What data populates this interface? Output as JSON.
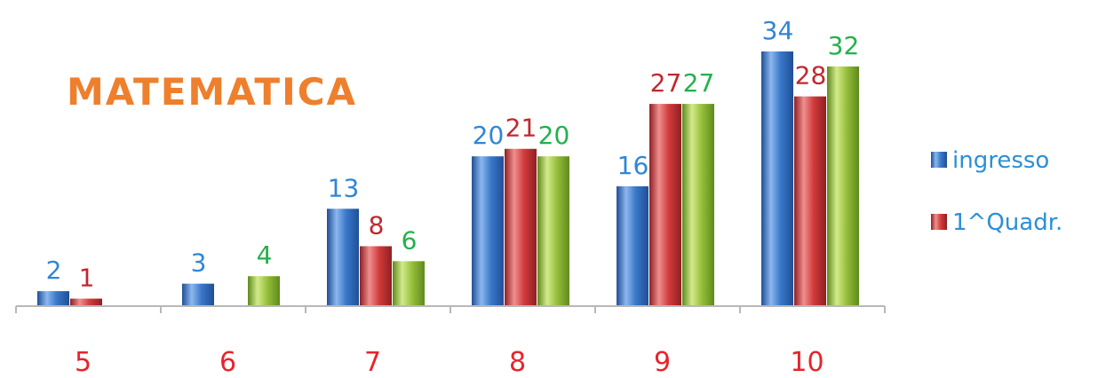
{
  "chart_data": {
    "type": "bar",
    "title": "MATEMATICA",
    "categories": [
      "5",
      "6",
      "7",
      "8",
      "9",
      "10"
    ],
    "series": [
      {
        "name": "ingresso",
        "values": [
          2,
          3,
          13,
          20,
          16,
          34
        ]
      },
      {
        "name": "1^Quadr.",
        "values": [
          1,
          null,
          8,
          21,
          27,
          28
        ]
      },
      {
        "name": "",
        "values": [
          null,
          4,
          6,
          20,
          27,
          32
        ]
      }
    ],
    "ylim": [
      0,
      34
    ],
    "grid": false,
    "legend_position": "right"
  },
  "colors": {
    "title": "#ee7f2d",
    "category_labels": "#e8232a",
    "axis": "#b8b8b8",
    "series": [
      {
        "base": "#3a78c9",
        "dark": "#1f4f96",
        "light": "#8cb7ee",
        "label": "#2f86d6"
      },
      {
        "base": "#d23c3c",
        "dark": "#8f1f22",
        "light": "#f08f8f",
        "label": "#c0282e"
      },
      {
        "base": "#98c03c",
        "dark": "#5e8a1c",
        "light": "#d3ea8c",
        "label": "#22b14c"
      }
    ],
    "legend_text": "#2b8fd6"
  }
}
